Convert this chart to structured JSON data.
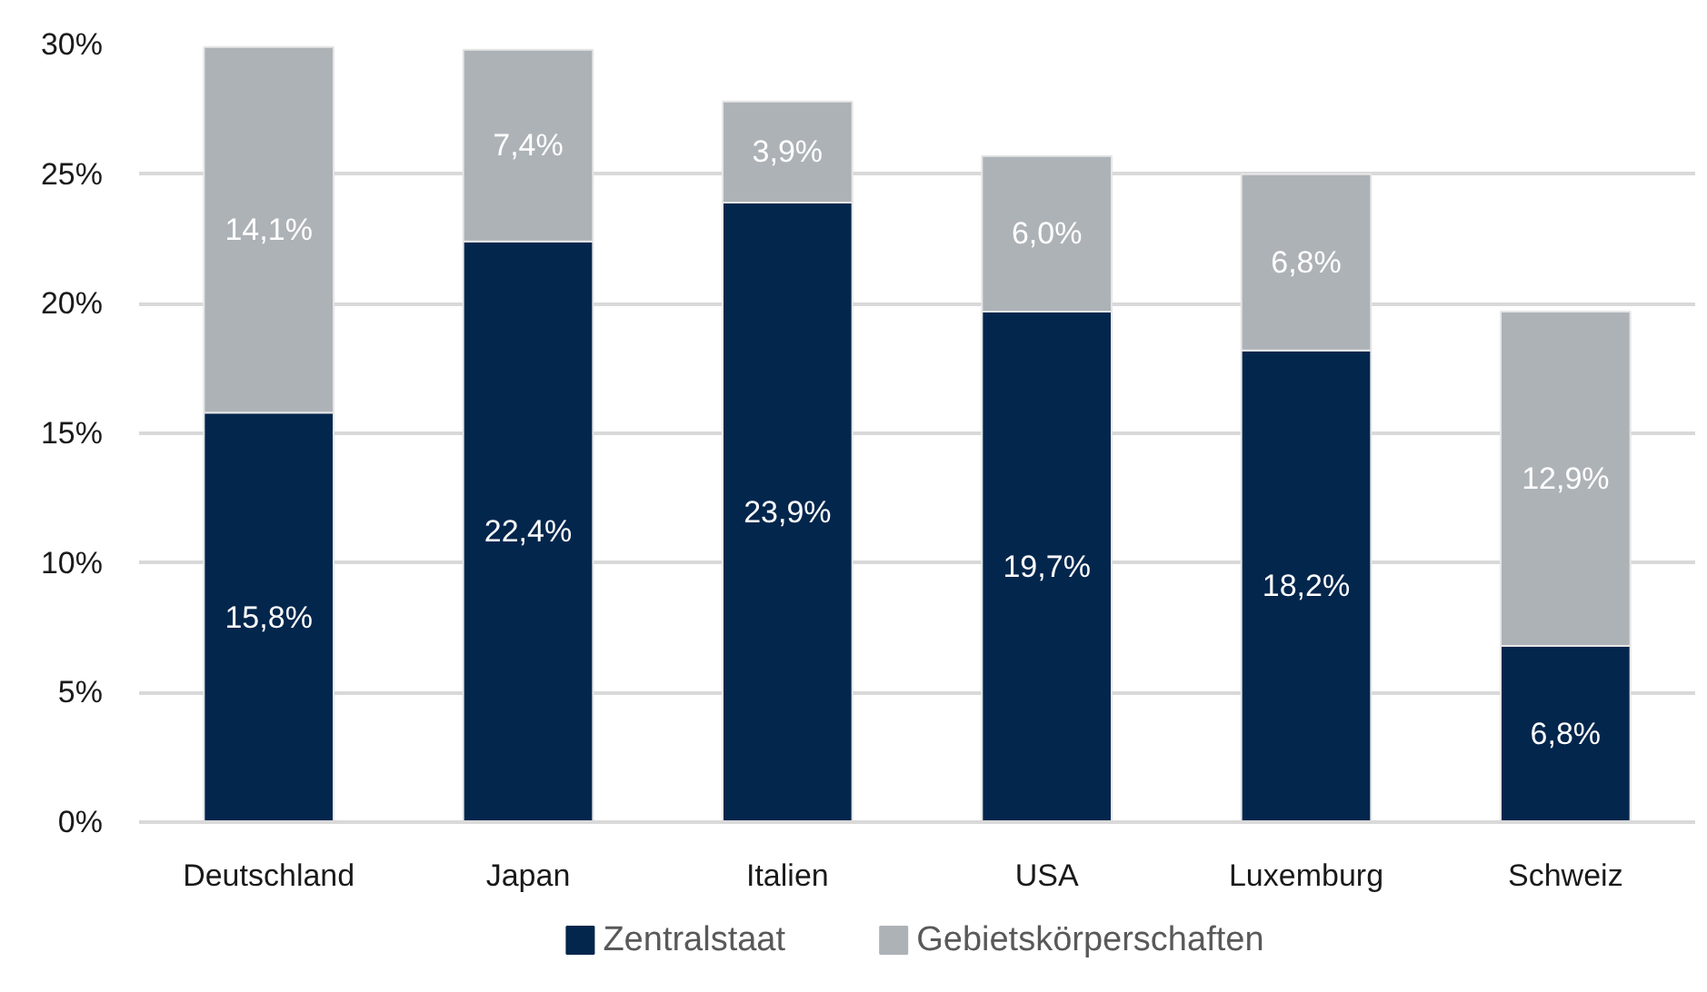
{
  "chart_data": {
    "type": "bar",
    "stacked": true,
    "categories": [
      "Deutschland",
      "Japan",
      "Italien",
      "USA",
      "Luxemburg",
      "Schweiz"
    ],
    "series": [
      {
        "name": "Zentralstaat",
        "color": "#03264d",
        "values": [
          15.8,
          22.4,
          23.9,
          19.7,
          18.2,
          6.8
        ],
        "value_labels": [
          "15,8%",
          "22,4%",
          "23,9%",
          "19,7%",
          "18,2%",
          "6,8%"
        ]
      },
      {
        "name": "Gebietskörperschaften",
        "color": "#adb2b7",
        "values": [
          14.1,
          7.4,
          3.9,
          6.0,
          6.8,
          12.9
        ],
        "value_labels": [
          "14,1%",
          "7,4%",
          "3,9%",
          "6,0%",
          "6,8%",
          "12,9%"
        ]
      }
    ],
    "ylim": [
      0,
      30
    ],
    "yticks": [
      {
        "value": 0,
        "label": "0%"
      },
      {
        "value": 5,
        "label": "5%"
      },
      {
        "value": 10,
        "label": "10%"
      },
      {
        "value": 15,
        "label": "15%"
      },
      {
        "value": 20,
        "label": "20%"
      },
      {
        "value": 25,
        "label": "25%"
      },
      {
        "value": 30,
        "label": "30%"
      }
    ],
    "grid": "y",
    "legend": "bottom"
  }
}
